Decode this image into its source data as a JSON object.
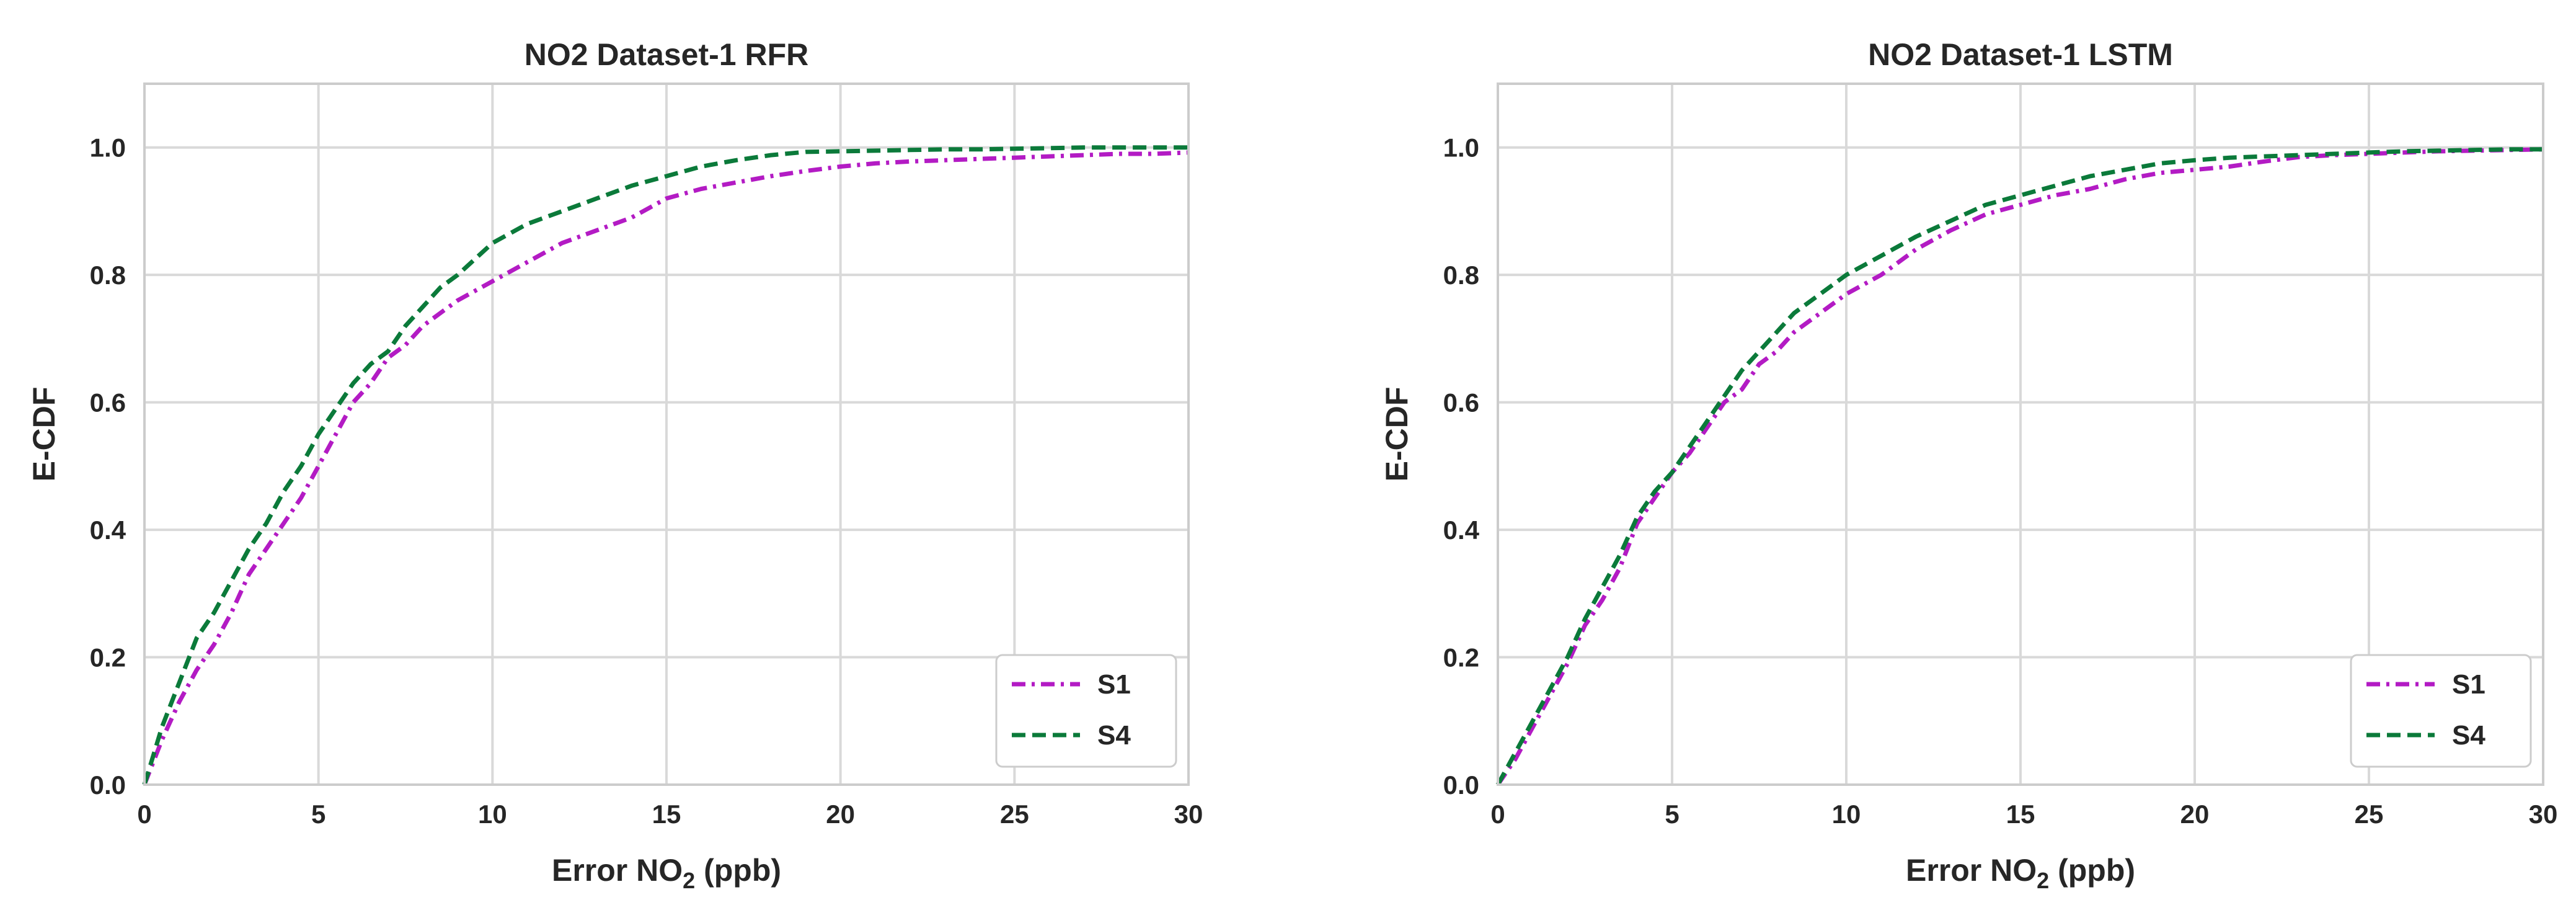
{
  "chart_data": [
    {
      "type": "line",
      "title": "NO2 Dataset-1 RFR",
      "xlabel": "Error NO",
      "xlabel_sub": "2",
      "xlabel_unit": " (ppb)",
      "ylabel": "E-CDF",
      "xlim": [
        0,
        30
      ],
      "ylim": [
        0,
        1.1
      ],
      "xticks": [
        0,
        5,
        10,
        15,
        20,
        25,
        30
      ],
      "yticks": [
        0.0,
        0.2,
        0.4,
        0.6,
        0.8,
        1.0
      ],
      "xtick_labels": [
        "0",
        "5",
        "10",
        "15",
        "20",
        "25",
        "30"
      ],
      "ytick_labels": [
        "0.0",
        "0.2",
        "0.4",
        "0.6",
        "0.8",
        "1.0"
      ],
      "grid": true,
      "legend_position": "bottom-right",
      "series": [
        {
          "name": "S1",
          "color": "#b31bc4",
          "dash": "dashdot",
          "x": [
            0,
            0.5,
            1,
            1.5,
            2,
            2.5,
            3,
            3.5,
            4,
            4.5,
            5,
            5.5,
            6,
            6.5,
            7,
            7.5,
            8,
            8.5,
            9,
            10,
            11,
            12,
            13,
            14,
            15,
            16,
            17,
            18,
            19,
            20,
            21,
            22,
            23,
            24,
            25,
            26,
            27,
            28,
            29,
            30
          ],
          "y": [
            0,
            0.07,
            0.13,
            0.18,
            0.22,
            0.27,
            0.33,
            0.37,
            0.41,
            0.45,
            0.5,
            0.55,
            0.6,
            0.63,
            0.67,
            0.69,
            0.72,
            0.74,
            0.76,
            0.79,
            0.82,
            0.85,
            0.87,
            0.89,
            0.92,
            0.935,
            0.945,
            0.955,
            0.963,
            0.97,
            0.975,
            0.978,
            0.98,
            0.982,
            0.984,
            0.986,
            0.988,
            0.99,
            0.99,
            0.992
          ]
        },
        {
          "name": "S4",
          "color": "#0b7a3a",
          "dash": "dashed",
          "x": [
            0,
            0.5,
            1,
            1.5,
            2,
            2.5,
            3,
            3.5,
            4,
            4.5,
            5,
            5.5,
            6,
            6.5,
            7,
            7.5,
            8,
            8.5,
            9,
            10,
            11,
            12,
            13,
            14,
            15,
            16,
            17,
            18,
            19,
            20,
            21,
            22,
            23,
            24,
            25,
            26,
            27,
            28,
            29,
            30
          ],
          "y": [
            0,
            0.09,
            0.16,
            0.23,
            0.27,
            0.32,
            0.37,
            0.41,
            0.46,
            0.5,
            0.55,
            0.59,
            0.63,
            0.66,
            0.68,
            0.72,
            0.75,
            0.78,
            0.8,
            0.85,
            0.88,
            0.9,
            0.92,
            0.94,
            0.955,
            0.97,
            0.98,
            0.988,
            0.993,
            0.994,
            0.995,
            0.996,
            0.997,
            0.997,
            0.998,
            0.999,
            1.0,
            1.0,
            1.0,
            1.0
          ]
        }
      ]
    },
    {
      "type": "line",
      "title": "NO2 Dataset-1 LSTM",
      "xlabel": "Error NO",
      "xlabel_sub": "2",
      "xlabel_unit": " (ppb)",
      "ylabel": "E-CDF",
      "xlim": [
        0,
        30
      ],
      "ylim": [
        0,
        1.1
      ],
      "xticks": [
        0,
        5,
        10,
        15,
        20,
        25,
        30
      ],
      "yticks": [
        0.0,
        0.2,
        0.4,
        0.6,
        0.8,
        1.0
      ],
      "xtick_labels": [
        "0",
        "5",
        "10",
        "15",
        "20",
        "25",
        "30"
      ],
      "ytick_labels": [
        "0.0",
        "0.2",
        "0.4",
        "0.6",
        "0.8",
        "1.0"
      ],
      "grid": true,
      "legend_position": "bottom-right",
      "series": [
        {
          "name": "S1",
          "color": "#b31bc4",
          "dash": "dashdot",
          "x": [
            0,
            0.5,
            1,
            1.5,
            2,
            2.5,
            3,
            3.5,
            4,
            4.5,
            5,
            5.5,
            6,
            6.5,
            7,
            7.5,
            8,
            8.5,
            9,
            10,
            11,
            12,
            13,
            14,
            15,
            16,
            17,
            18,
            19,
            20,
            21,
            22,
            23,
            24,
            25,
            26,
            27,
            28,
            29,
            30
          ],
          "y": [
            0,
            0.04,
            0.09,
            0.14,
            0.19,
            0.25,
            0.29,
            0.34,
            0.41,
            0.45,
            0.49,
            0.52,
            0.56,
            0.6,
            0.62,
            0.66,
            0.68,
            0.71,
            0.73,
            0.77,
            0.8,
            0.84,
            0.87,
            0.895,
            0.91,
            0.925,
            0.935,
            0.95,
            0.96,
            0.965,
            0.97,
            0.978,
            0.985,
            0.988,
            0.99,
            0.992,
            0.994,
            0.995,
            0.996,
            0.997
          ]
        },
        {
          "name": "S4",
          "color": "#0b7a3a",
          "dash": "dashed",
          "x": [
            0,
            0.5,
            1,
            1.5,
            2,
            2.5,
            3,
            3.5,
            4,
            4.5,
            5,
            5.5,
            6,
            6.5,
            7,
            7.5,
            8,
            8.5,
            9,
            10,
            11,
            12,
            13,
            14,
            15,
            16,
            17,
            18,
            19,
            20,
            21,
            22,
            23,
            24,
            25,
            26,
            27,
            28,
            29,
            30
          ],
          "y": [
            0,
            0.05,
            0.1,
            0.15,
            0.2,
            0.26,
            0.31,
            0.36,
            0.42,
            0.46,
            0.49,
            0.53,
            0.57,
            0.61,
            0.65,
            0.68,
            0.71,
            0.74,
            0.76,
            0.8,
            0.83,
            0.86,
            0.885,
            0.91,
            0.925,
            0.94,
            0.955,
            0.965,
            0.975,
            0.98,
            0.984,
            0.986,
            0.988,
            0.99,
            0.992,
            0.994,
            0.995,
            0.996,
            0.997,
            0.997
          ]
        }
      ]
    }
  ]
}
